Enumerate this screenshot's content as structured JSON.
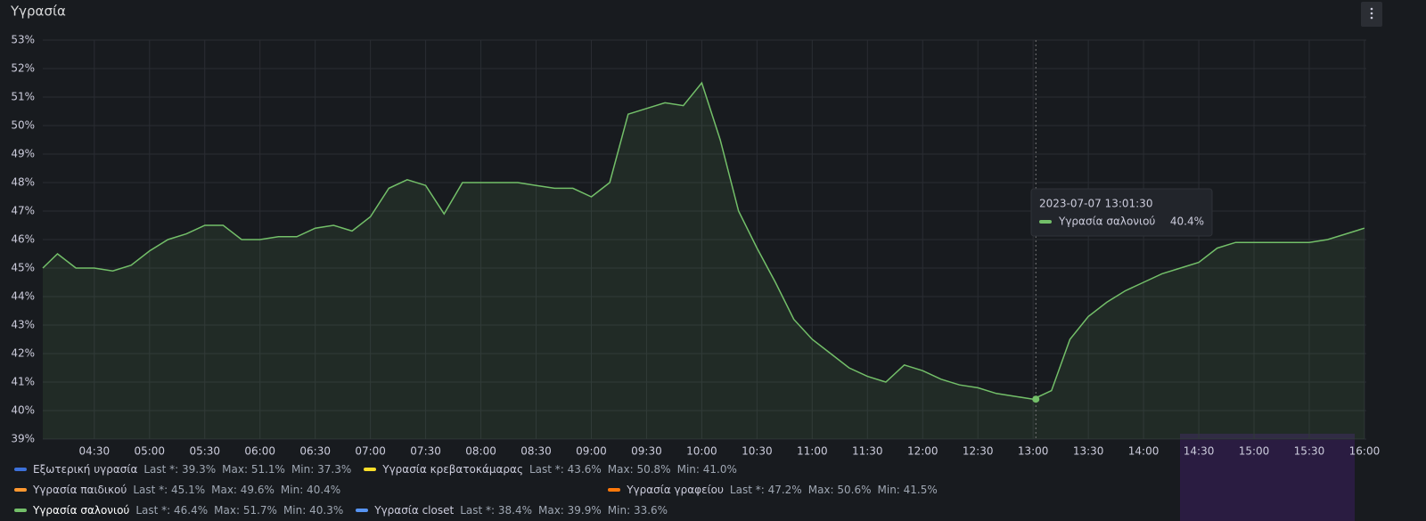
{
  "chart_data": {
    "type": "line",
    "title": "Υγρασία",
    "x": [
      "04:02",
      "04:10",
      "04:20",
      "04:30",
      "04:40",
      "04:50",
      "05:00",
      "05:10",
      "05:20",
      "05:30",
      "05:40",
      "05:50",
      "06:00",
      "06:10",
      "06:20",
      "06:30",
      "06:40",
      "06:50",
      "07:00",
      "07:10",
      "07:20",
      "07:30",
      "07:40",
      "07:50",
      "08:00",
      "08:10",
      "08:20",
      "08:30",
      "08:40",
      "08:50",
      "09:00",
      "09:10",
      "09:20",
      "09:30",
      "09:40",
      "09:50",
      "10:00",
      "10:10",
      "10:20",
      "10:30",
      "10:40",
      "10:50",
      "11:00",
      "11:10",
      "11:20",
      "11:30",
      "11:40",
      "11:50",
      "12:00",
      "12:10",
      "12:20",
      "12:30",
      "12:40",
      "12:50",
      "13:00",
      "13:10",
      "13:20",
      "13:30",
      "13:40",
      "13:50",
      "14:00",
      "14:10",
      "14:20",
      "14:30",
      "14:40",
      "14:50",
      "15:00",
      "15:10",
      "15:20",
      "15:30",
      "15:40",
      "15:50",
      "16:00"
    ],
    "series": [
      {
        "name": "Υγρασία σαλονιού",
        "color": "#73bf69",
        "values": [
          45.0,
          45.5,
          45.0,
          45.0,
          44.9,
          45.1,
          45.6,
          46.0,
          46.2,
          46.5,
          46.5,
          46.0,
          46.0,
          46.1,
          46.1,
          46.4,
          46.5,
          46.3,
          46.8,
          47.8,
          48.1,
          47.9,
          46.9,
          48.0,
          48.0,
          48.0,
          48.0,
          47.9,
          47.8,
          47.8,
          47.5,
          48.0,
          50.4,
          50.6,
          50.8,
          50.7,
          51.5,
          49.5,
          47.0,
          45.7,
          44.5,
          43.2,
          42.5,
          42.0,
          41.5,
          41.2,
          41.0,
          41.6,
          41.4,
          41.1,
          40.9,
          40.8,
          40.6,
          40.5,
          40.4,
          40.7,
          42.5,
          43.3,
          43.8,
          44.2,
          44.5,
          44.8,
          45.0,
          45.2,
          45.7,
          45.9,
          45.9,
          45.9,
          45.9,
          45.9,
          46.0,
          46.2,
          46.4
        ]
      }
    ],
    "xlim": [
      "04:02",
      "16:01"
    ],
    "xticks": [
      "04:30",
      "05:00",
      "05:30",
      "06:00",
      "06:30",
      "07:00",
      "07:30",
      "08:00",
      "08:30",
      "09:00",
      "09:30",
      "10:00",
      "10:30",
      "11:00",
      "11:30",
      "12:00",
      "12:30",
      "13:00",
      "13:30",
      "14:00",
      "14:30",
      "15:00",
      "15:30",
      "16:00"
    ],
    "ylim": [
      39,
      53
    ],
    "yticks": [
      {
        "value": 39,
        "label": "39%"
      },
      {
        "value": 40,
        "label": "40%"
      },
      {
        "value": 41,
        "label": "41%"
      },
      {
        "value": 42,
        "label": "42%"
      },
      {
        "value": 43,
        "label": "43%"
      },
      {
        "value": 44,
        "label": "44%"
      },
      {
        "value": 45,
        "label": "45%"
      },
      {
        "value": 46,
        "label": "46%"
      },
      {
        "value": 47,
        "label": "47%"
      },
      {
        "value": 48,
        "label": "48%"
      },
      {
        "value": 49,
        "label": "49%"
      },
      {
        "value": 50,
        "label": "50%"
      },
      {
        "value": 51,
        "label": "51%"
      },
      {
        "value": 52,
        "label": "52%"
      },
      {
        "value": 53,
        "label": "53%"
      }
    ],
    "grid": true,
    "legend": [
      {
        "name": "Εξωτερική υγρασία",
        "color": "#3d71d9",
        "last": "Last *: 39.3%",
        "max": "Max: 51.1%",
        "min": "Min: 37.3%"
      },
      {
        "name": "Υγρασία κρεβατοκάμαρας",
        "color": "#fade2a",
        "last": "Last *: 43.6%",
        "max": "Max: 50.8%",
        "min": "Min: 41.0%"
      },
      {
        "name": "Υγρασία παιδικού",
        "color": "#ff9830",
        "last": "Last *: 45.1%",
        "max": "Max: 49.6%",
        "min": "Min: 40.4%"
      },
      {
        "name": "Υγρασία γραφείου",
        "color": "#ff780a",
        "last": "Last *: 47.2%",
        "max": "Max: 50.6%",
        "min": "Min: 41.5%"
      },
      {
        "name": "Υγρασία σαλονιού",
        "color": "#73bf69",
        "last": "Last *: 46.4%",
        "max": "Max: 51.7%",
        "min": "Min: 40.3%"
      },
      {
        "name": "Υγρασία closet",
        "color": "#5794f2",
        "last": "Last *: 38.4%",
        "max": "Max: 39.9%",
        "min": "Min: 33.6%"
      }
    ],
    "tooltip": {
      "time": "2023-07-07 13:01:30",
      "series": "Υγρασία σαλονιού",
      "value": 40.4,
      "value_label": "40.4%"
    }
  }
}
